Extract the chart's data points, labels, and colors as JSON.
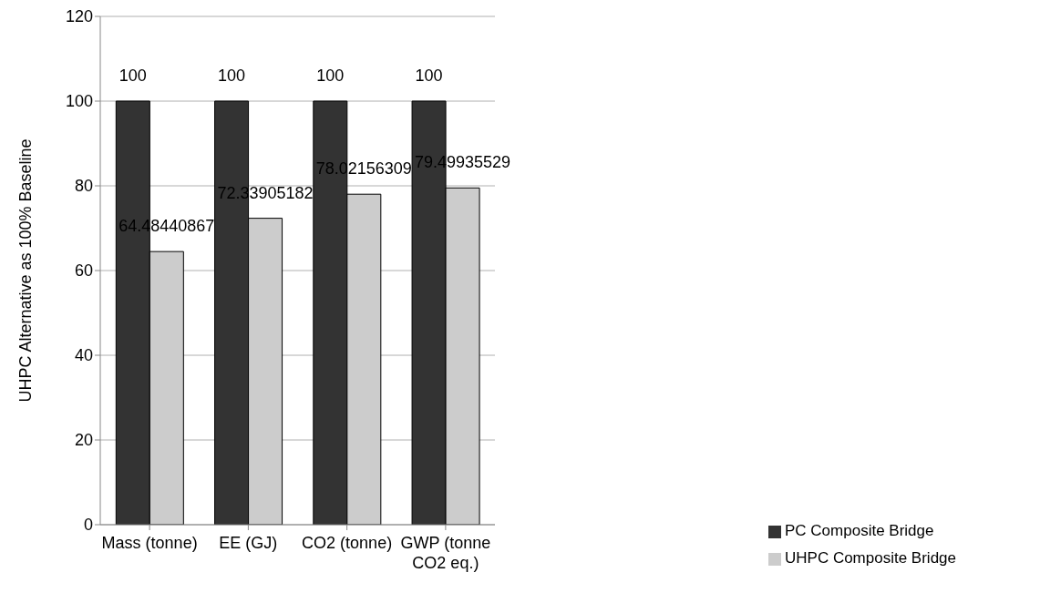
{
  "chart_data": {
    "type": "bar",
    "ylabel": "UHPC Alternative as 100% Baseline",
    "categories": [
      "Mass (tonne)",
      "EE (GJ)",
      "CO2 (tonne)",
      "GWP (tonne CO2 eq.)"
    ],
    "series": [
      {
        "name": "PC Composite Bridge",
        "color": "#333333",
        "values": [
          100,
          100,
          100,
          100
        ]
      },
      {
        "name": "UHPC Composite Bridge",
        "color": "#cccccc",
        "values": [
          64.48440867,
          72.33905182,
          78.02156309,
          79.49935529
        ]
      }
    ],
    "ylim": [
      0,
      120
    ],
    "yticks": [
      0,
      20,
      40,
      60,
      80,
      100,
      120
    ],
    "grid": "y",
    "legend": "bottom right",
    "data_labels": true
  }
}
